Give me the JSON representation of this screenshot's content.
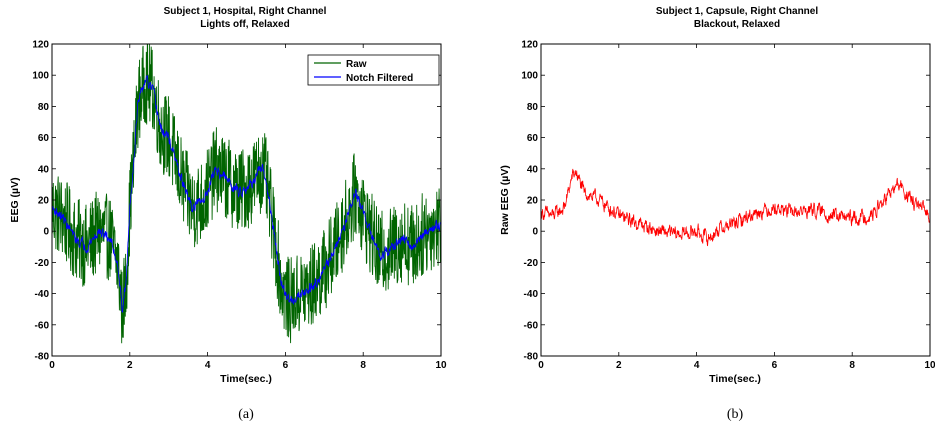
{
  "chart_data": [
    {
      "type": "line",
      "title": "Subject 1, Hospital, Right Channel",
      "subtitle": "Lights off, Relaxed",
      "xlabel": "Time(sec.)",
      "ylabel": "EEG (µV)",
      "xlim": [
        0,
        10
      ],
      "ylim": [
        -80,
        120
      ],
      "xticks": [
        "0",
        "2",
        "4",
        "6",
        "8",
        "10"
      ],
      "yticks": [
        "-80",
        "-60",
        "-40",
        "-20",
        "0",
        "20",
        "40",
        "60",
        "80",
        "100",
        "120"
      ],
      "grid": false,
      "legend_position": "top-right",
      "caption": "(a)",
      "series": [
        {
          "name": "Raw",
          "color": "#006400",
          "x": [
            0,
            0.3,
            0.6,
            0.9,
            1.2,
            1.5,
            1.7,
            1.8,
            1.9,
            2.0,
            2.1,
            2.2,
            2.4,
            2.6,
            2.8,
            3.0,
            3.3,
            3.6,
            3.9,
            4.2,
            4.5,
            4.8,
            5.1,
            5.4,
            5.5,
            5.7,
            5.9,
            6.1,
            6.4,
            6.7,
            7.0,
            7.3,
            7.6,
            7.8,
            8.1,
            8.4,
            8.7,
            9.0,
            9.3,
            9.6,
            10.0
          ],
          "values": [
            15,
            8,
            -5,
            -10,
            0,
            -5,
            -22,
            -50,
            -35,
            15,
            45,
            80,
            97,
            90,
            65,
            60,
            35,
            15,
            20,
            40,
            33,
            25,
            30,
            40,
            33,
            0,
            -35,
            -45,
            -40,
            -35,
            -25,
            -10,
            10,
            25,
            5,
            -15,
            -12,
            -5,
            -10,
            0,
            5
          ],
          "amplitude": 55
        },
        {
          "name": "Notch Filtered",
          "color": "#0000ff",
          "x": [
            0,
            0.3,
            0.6,
            0.9,
            1.2,
            1.5,
            1.7,
            1.8,
            1.9,
            2.0,
            2.1,
            2.2,
            2.4,
            2.6,
            2.8,
            3.0,
            3.3,
            3.6,
            3.9,
            4.2,
            4.5,
            4.8,
            5.1,
            5.4,
            5.5,
            5.7,
            5.9,
            6.1,
            6.4,
            6.7,
            7.0,
            7.3,
            7.6,
            7.8,
            8.1,
            8.4,
            8.7,
            9.0,
            9.3,
            9.6,
            10.0
          ],
          "values": [
            15,
            8,
            -5,
            -10,
            0,
            -5,
            -22,
            -50,
            -35,
            15,
            45,
            80,
            97,
            90,
            65,
            60,
            35,
            15,
            20,
            40,
            33,
            25,
            30,
            40,
            33,
            0,
            -35,
            -45,
            -40,
            -35,
            -25,
            -10,
            10,
            25,
            5,
            -15,
            -12,
            -5,
            -10,
            0,
            5
          ],
          "amplitude": 12
        }
      ]
    },
    {
      "type": "line",
      "title": "Subject 1, Capsule, Right Channel",
      "subtitle": "Blackout, Relaxed",
      "xlabel": "Time(sec.)",
      "ylabel": "Raw EEG (µV)",
      "xlim": [
        0,
        10
      ],
      "ylim": [
        -80,
        120
      ],
      "xticks": [
        "0",
        "2",
        "4",
        "6",
        "8",
        "10"
      ],
      "yticks": [
        "-80",
        "-60",
        "-40",
        "-20",
        "0",
        "20",
        "40",
        "60",
        "80",
        "100",
        "120"
      ],
      "grid": false,
      "caption": "(b)",
      "series": [
        {
          "color": "#ff0000",
          "x": [
            0,
            0.3,
            0.6,
            0.8,
            0.9,
            1.1,
            1.5,
            2.0,
            2.5,
            3.0,
            3.5,
            4.0,
            4.3,
            4.6,
            5.0,
            5.5,
            6.0,
            6.5,
            7.0,
            7.5,
            8.0,
            8.5,
            9.0,
            9.2,
            9.5,
            10.0
          ],
          "values": [
            12,
            10,
            15,
            35,
            38,
            25,
            20,
            10,
            5,
            0,
            -2,
            0,
            -5,
            2,
            5,
            12,
            15,
            12,
            14,
            10,
            8,
            10,
            25,
            30,
            20,
            10
          ],
          "amplitude": 16
        }
      ]
    }
  ]
}
